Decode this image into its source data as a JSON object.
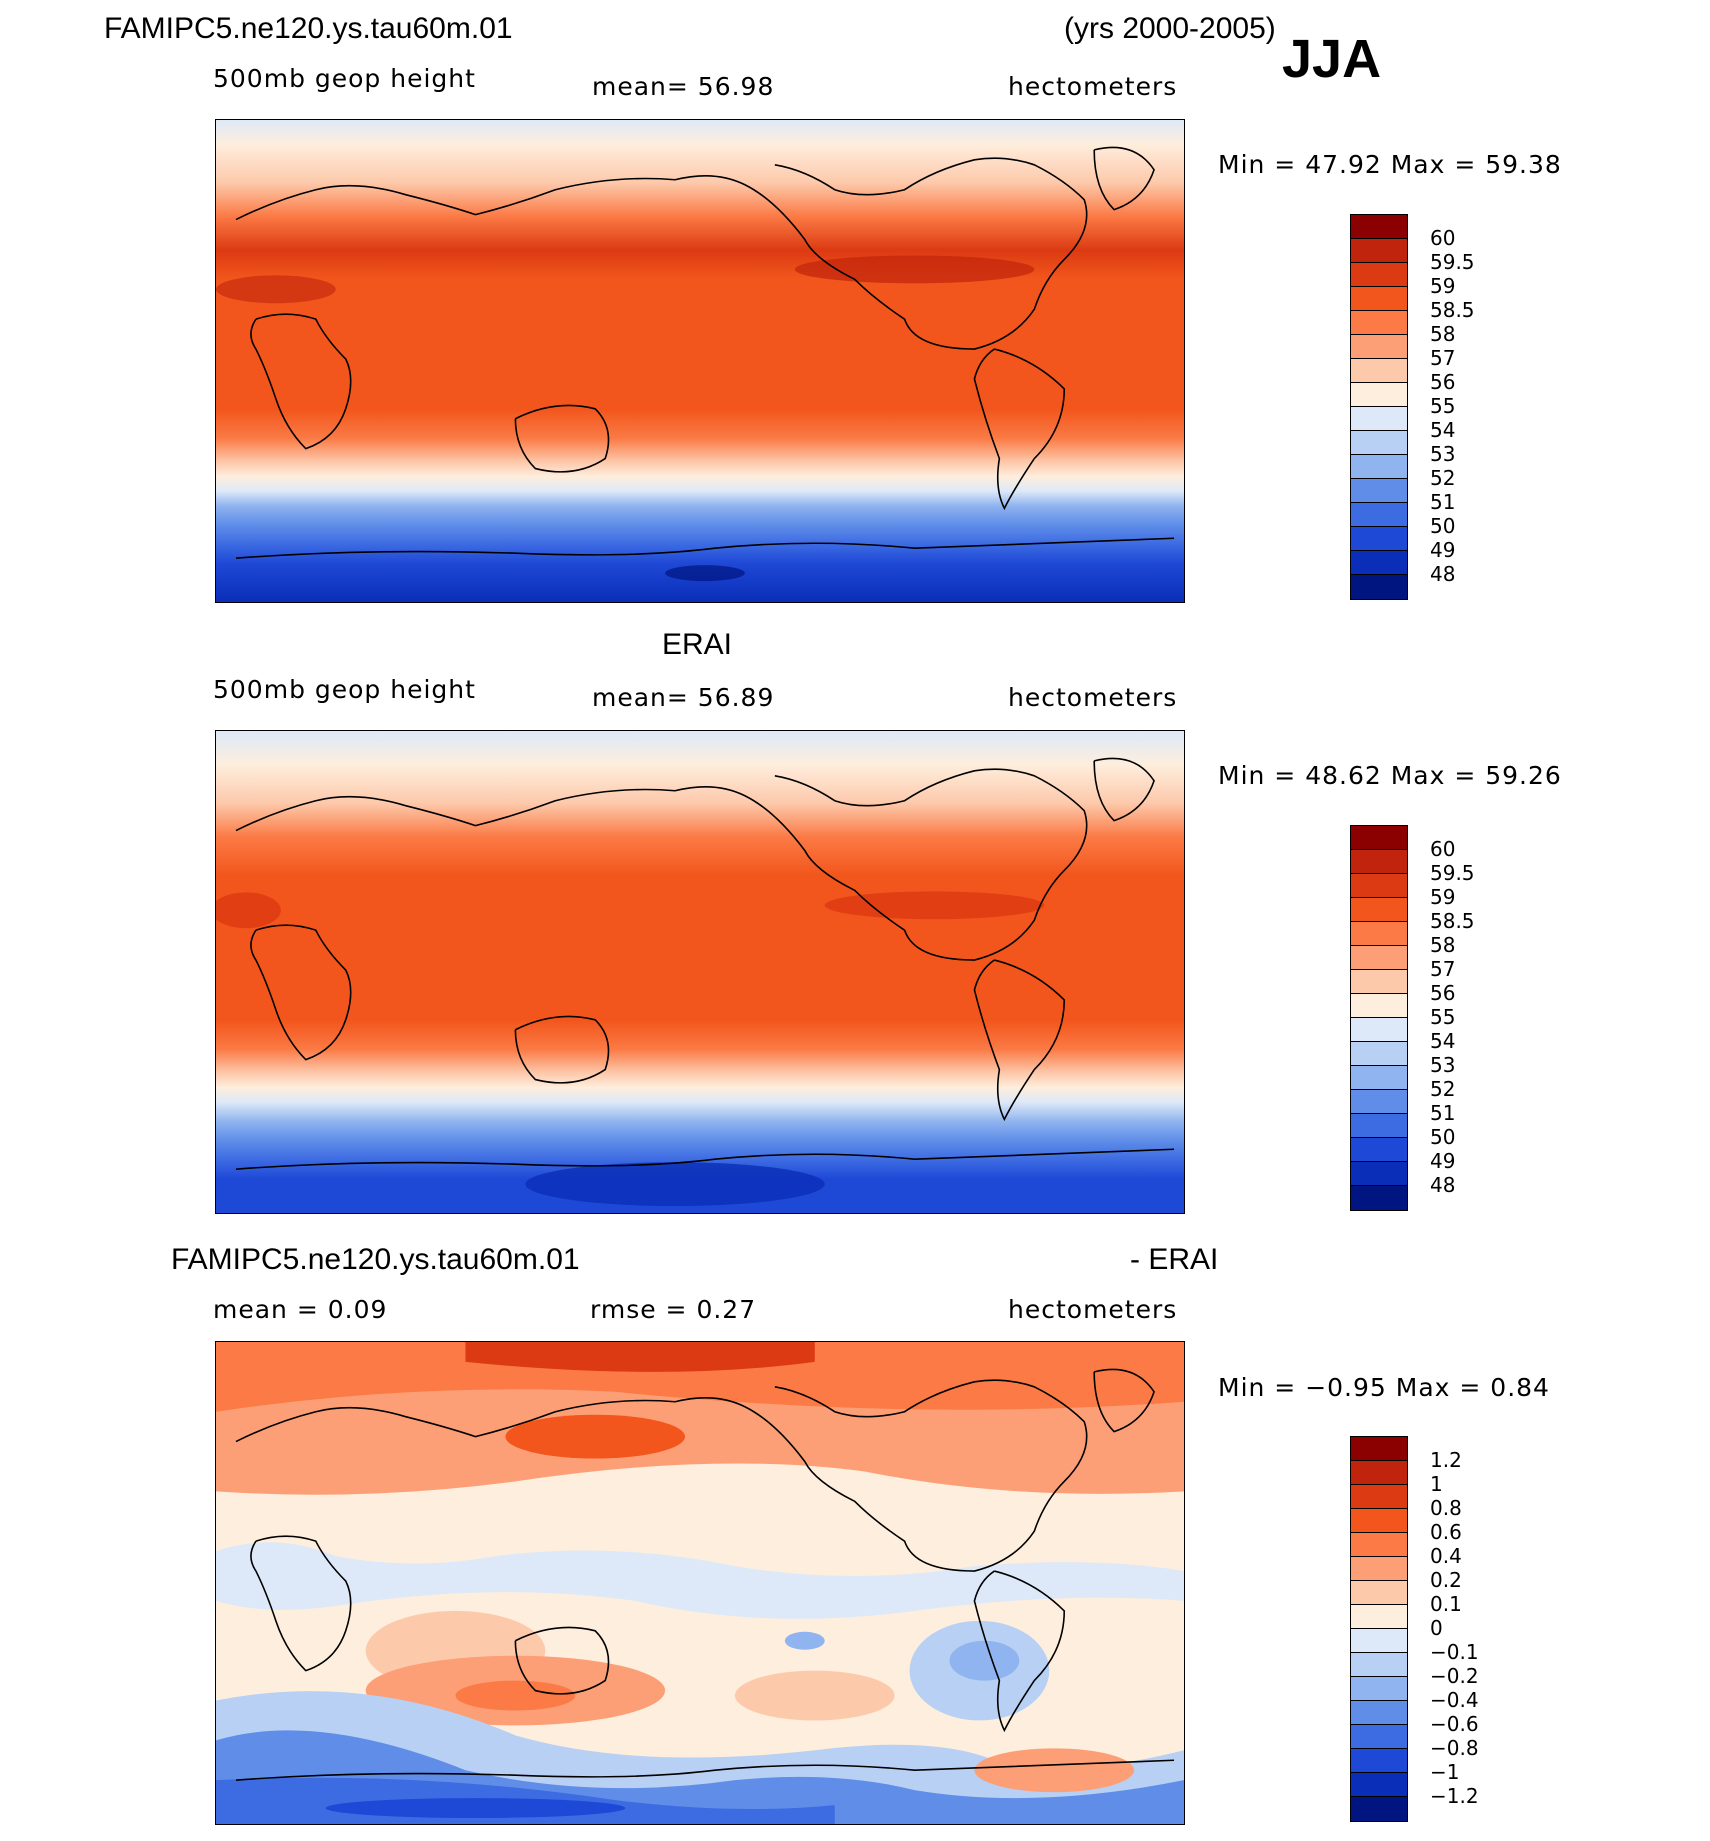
{
  "header": {
    "case": "FAMIPC5.ne120.ys.tau60m.01",
    "years": "(yrs 2000-2005)",
    "season": "JJA"
  },
  "panels": [
    {
      "id": "model",
      "title": "",
      "var_label": "500mb  geop  height",
      "stat_label": "mean=   56.98",
      "units": "hectometers",
      "minmax": "Min =   47.92  Max =   59.38",
      "levels": [
        "60",
        "59.5",
        "59",
        "58.5",
        "58",
        "57",
        "56",
        "55",
        "54",
        "53",
        "52",
        "51",
        "50",
        "49",
        "48"
      ],
      "colors": [
        "#8b0000",
        "#c0240c",
        "#dc3a12",
        "#f2561c",
        "#fb7a45",
        "#fc9f76",
        "#fdc9ab",
        "#feeedd",
        "#dde9f8",
        "#b8d0f4",
        "#90b4ef",
        "#5f8de8",
        "#3d6be2",
        "#1e48d6",
        "#0a2eb8",
        "#001580"
      ]
    },
    {
      "id": "obs",
      "title": "ERAI",
      "var_label": "500mb  geop  height",
      "stat_label": "mean=   56.89",
      "units": "hectometers",
      "minmax": "Min =   48.62  Max =   59.26",
      "levels": [
        "60",
        "59.5",
        "59",
        "58.5",
        "58",
        "57",
        "56",
        "55",
        "54",
        "53",
        "52",
        "51",
        "50",
        "49",
        "48"
      ],
      "colors": [
        "#8b0000",
        "#c0240c",
        "#dc3a12",
        "#f2561c",
        "#fb7a45",
        "#fc9f76",
        "#fdc9ab",
        "#feeedd",
        "#dde9f8",
        "#b8d0f4",
        "#90b4ef",
        "#5f8de8",
        "#3d6be2",
        "#1e48d6",
        "#0a2eb8",
        "#001580"
      ]
    },
    {
      "id": "diff",
      "title_left": "FAMIPC5.ne120.ys.tau60m.01",
      "title_right": "- ERAI",
      "mean_label": "mean =    0.09",
      "rmse_label": "rmse =    0.27",
      "units": "hectometers",
      "minmax": "Min =  −0.95  Max =    0.84",
      "levels": [
        "1.2",
        "1",
        "0.8",
        "0.6",
        "0.4",
        "0.2",
        "0.1",
        "0",
        "−0.1",
        "−0.2",
        "−0.4",
        "−0.6",
        "−0.8",
        "−1",
        "−1.2"
      ],
      "colors": [
        "#8b0000",
        "#c0240c",
        "#dc3a12",
        "#f2561c",
        "#fb7a45",
        "#fc9f76",
        "#fdc9ab",
        "#feeedd",
        "#dde9f8",
        "#b8d0f4",
        "#90b4ef",
        "#5f8de8",
        "#3d6be2",
        "#1e48d6",
        "#0a2eb8",
        "#001580"
      ]
    }
  ]
}
